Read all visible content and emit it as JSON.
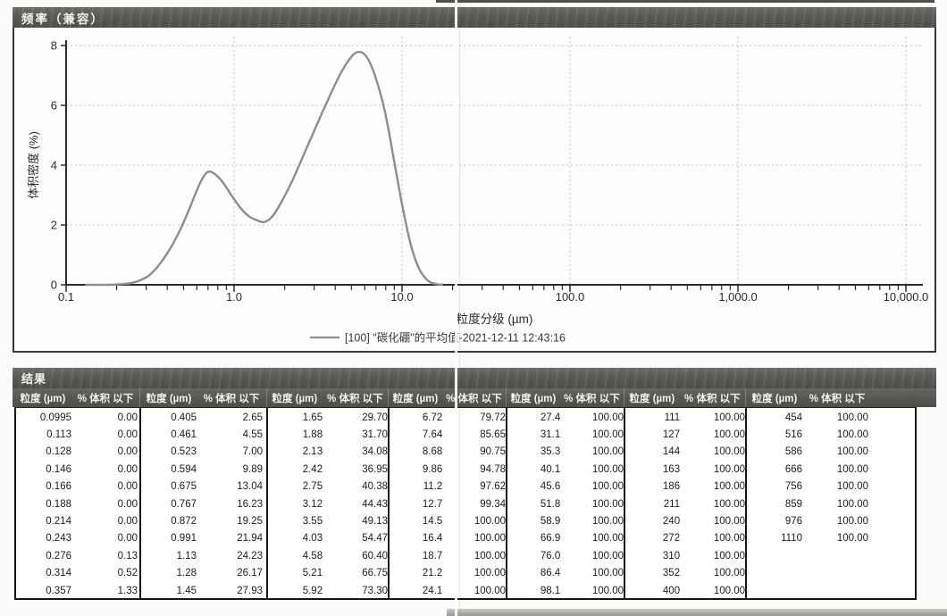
{
  "frequency_section": {
    "title": "频率（兼容）"
  },
  "chart_data": {
    "type": "line",
    "title": "频率（兼容）",
    "xlabel": "粒度分级 (µm)",
    "ylabel": "体积密度 (%)",
    "x_scale": "log",
    "xlim": [
      0.1,
      10000
    ],
    "ylim": [
      0,
      8
    ],
    "x_tick_values": [
      0.1,
      1,
      10,
      100,
      1000,
      10000
    ],
    "x_tick_labels": [
      "0.1",
      "1.0",
      "10.0",
      "100.0",
      "1,000.0",
      "10,000.0"
    ],
    "y_tick_values": [
      0,
      2,
      4,
      6,
      8
    ],
    "y_tick_labels": [
      "0",
      "2",
      "4",
      "6",
      "8"
    ],
    "grid": true,
    "legend_position": "bottom",
    "legend": "[100] \"碳化硼\"的平均值-2021-12-11 12:43:16",
    "series": [
      {
        "name": "[100] \"碳化硼\"的平均值-2021-12-11 12:43:16",
        "color": "#8d8d8d",
        "points": [
          [
            0.13,
            0
          ],
          [
            0.18,
            0
          ],
          [
            0.21,
            0.02
          ],
          [
            0.24,
            0.05
          ],
          [
            0.27,
            0.13
          ],
          [
            0.31,
            0.3
          ],
          [
            0.35,
            0.6
          ],
          [
            0.4,
            1.05
          ],
          [
            0.46,
            1.65
          ],
          [
            0.52,
            2.3
          ],
          [
            0.58,
            2.95
          ],
          [
            0.64,
            3.5
          ],
          [
            0.7,
            3.78
          ],
          [
            0.77,
            3.7
          ],
          [
            0.85,
            3.45
          ],
          [
            0.95,
            3.05
          ],
          [
            1.08,
            2.6
          ],
          [
            1.22,
            2.3
          ],
          [
            1.38,
            2.15
          ],
          [
            1.52,
            2.1
          ],
          [
            1.7,
            2.3
          ],
          [
            1.95,
            2.85
          ],
          [
            2.25,
            3.55
          ],
          [
            2.6,
            4.35
          ],
          [
            3.0,
            5.15
          ],
          [
            3.6,
            6.15
          ],
          [
            4.2,
            6.95
          ],
          [
            4.8,
            7.5
          ],
          [
            5.4,
            7.78
          ],
          [
            6.1,
            7.65
          ],
          [
            6.9,
            7.0
          ],
          [
            7.9,
            5.8
          ],
          [
            9.0,
            4.1
          ],
          [
            10.0,
            2.7
          ],
          [
            11.2,
            1.4
          ],
          [
            12.6,
            0.55
          ],
          [
            14.2,
            0.15
          ],
          [
            15.8,
            0.03
          ],
          [
            17.5,
            0
          ]
        ]
      }
    ]
  },
  "results_section": {
    "title": "结果",
    "col_header_size": "粒度 (µm)",
    "col_header_pct": "% 体积 以下",
    "groups": [
      {
        "rows": [
          [
            "0.0995",
            "0.00"
          ],
          [
            "0.113",
            "0.00"
          ],
          [
            "0.128",
            "0.00"
          ],
          [
            "0.146",
            "0.00"
          ],
          [
            "0.166",
            "0.00"
          ],
          [
            "0.188",
            "0.00"
          ],
          [
            "0.214",
            "0.00"
          ],
          [
            "0.243",
            "0.00"
          ],
          [
            "0.276",
            "0.13"
          ],
          [
            "0.314",
            "0.52"
          ],
          [
            "0.357",
            "1.33"
          ]
        ]
      },
      {
        "rows": [
          [
            "0.405",
            "2.65"
          ],
          [
            "0.461",
            "4.55"
          ],
          [
            "0.523",
            "7.00"
          ],
          [
            "0.594",
            "9.89"
          ],
          [
            "0.675",
            "13.04"
          ],
          [
            "0.767",
            "16.23"
          ],
          [
            "0.872",
            "19.25"
          ],
          [
            "0.991",
            "21.94"
          ],
          [
            "1.13",
            "24.23"
          ],
          [
            "1.28",
            "26.17"
          ],
          [
            "1.45",
            "27.93"
          ]
        ]
      },
      {
        "rows": [
          [
            "1.65",
            "29.70"
          ],
          [
            "1.88",
            "31.70"
          ],
          [
            "2.13",
            "34.08"
          ],
          [
            "2.42",
            "36.95"
          ],
          [
            "2.75",
            "40.38"
          ],
          [
            "3.12",
            "44.43"
          ],
          [
            "3.55",
            "49.13"
          ],
          [
            "4.03",
            "54.47"
          ],
          [
            "4.58",
            "60.40"
          ],
          [
            "5.21",
            "66.75"
          ],
          [
            "5.92",
            "73.30"
          ]
        ]
      },
      {
        "rows": [
          [
            "6.72",
            "79.72"
          ],
          [
            "7.64",
            "85.65"
          ],
          [
            "8.68",
            "90.75"
          ],
          [
            "9.86",
            "94.78"
          ],
          [
            "11.2",
            "97.62"
          ],
          [
            "12.7",
            "99.34"
          ],
          [
            "14.5",
            "100.00"
          ],
          [
            "16.4",
            "100.00"
          ],
          [
            "18.7",
            "100.00"
          ],
          [
            "21.2",
            "100.00"
          ],
          [
            "24.1",
            "100.00"
          ]
        ]
      },
      {
        "rows": [
          [
            "27.4",
            "100.00"
          ],
          [
            "31.1",
            "100.00"
          ],
          [
            "35.3",
            "100.00"
          ],
          [
            "40.1",
            "100.00"
          ],
          [
            "45.6",
            "100.00"
          ],
          [
            "51.8",
            "100.00"
          ],
          [
            "58.9",
            "100.00"
          ],
          [
            "66.9",
            "100.00"
          ],
          [
            "76.0",
            "100.00"
          ],
          [
            "86.4",
            "100.00"
          ],
          [
            "98.1",
            "100.00"
          ]
        ]
      },
      {
        "rows": [
          [
            "111",
            "100.00"
          ],
          [
            "127",
            "100.00"
          ],
          [
            "144",
            "100.00"
          ],
          [
            "163",
            "100.00"
          ],
          [
            "186",
            "100.00"
          ],
          [
            "211",
            "100.00"
          ],
          [
            "240",
            "100.00"
          ],
          [
            "272",
            "100.00"
          ],
          [
            "310",
            "100.00"
          ],
          [
            "352",
            "100.00"
          ],
          [
            "400",
            "100.00"
          ]
        ]
      },
      {
        "rows": [
          [
            "454",
            "100.00"
          ],
          [
            "516",
            "100.00"
          ],
          [
            "586",
            "100.00"
          ],
          [
            "666",
            "100.00"
          ],
          [
            "756",
            "100.00"
          ],
          [
            "859",
            "100.00"
          ],
          [
            "976",
            "100.00"
          ],
          [
            "1110",
            "100.00"
          ]
        ]
      }
    ]
  }
}
